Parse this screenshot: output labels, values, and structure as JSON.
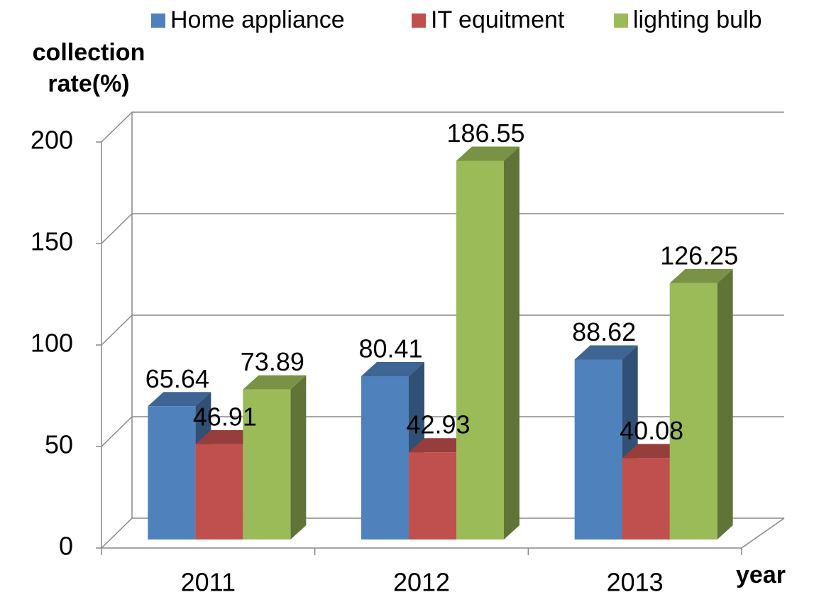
{
  "chart_data": {
    "type": "bar3d",
    "y_label": "collection rate(%)",
    "x_label": "year",
    "categories": [
      "2011",
      "2012",
      "2013"
    ],
    "series": [
      {
        "name": "Home appliance",
        "color": "#4f81bd",
        "values": [
          65.64,
          80.41,
          88.62
        ]
      },
      {
        "name": "IT equitment",
        "color": "#c0504d",
        "values": [
          46.91,
          42.93,
          40.08
        ]
      },
      {
        "name": "lighting bulb",
        "color": "#9bbb59",
        "values": [
          73.89,
          186.55,
          126.25
        ]
      }
    ],
    "ylim": [
      0,
      200
    ],
    "yticks": [
      0,
      50,
      100,
      150,
      200
    ],
    "grid": true,
    "legend": "top"
  }
}
